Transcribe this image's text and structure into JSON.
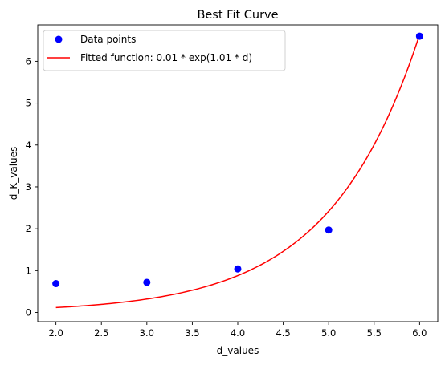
{
  "chart_data": {
    "type": "scatter",
    "title": "Best Fit Curve",
    "xlabel": "d_values",
    "ylabel": "d_K_values",
    "xlim": [
      1.8,
      6.2
    ],
    "ylim": [
      -0.22,
      6.87
    ],
    "xticks": [
      "2.0",
      "2.5",
      "3.0",
      "3.5",
      "4.0",
      "4.5",
      "5.0",
      "5.5",
      "6.0"
    ],
    "yticks": [
      "0",
      "1",
      "2",
      "3",
      "4",
      "5",
      "6"
    ],
    "grid": false,
    "legend_position": "top-left",
    "series": [
      {
        "name": "Data points",
        "kind": "scatter",
        "color": "#0000ff",
        "x": [
          2.0,
          3.0,
          4.0,
          5.0,
          6.0
        ],
        "y": [
          0.69,
          0.72,
          1.04,
          1.97,
          6.6
        ]
      },
      {
        "name": "Fitted function: 0.01 * exp(1.01 * d)",
        "kind": "line",
        "color": "#ff0000",
        "function": {
          "a": 0.0155,
          "b": 1.01
        },
        "x_range": [
          2.0,
          6.0
        ]
      }
    ]
  }
}
